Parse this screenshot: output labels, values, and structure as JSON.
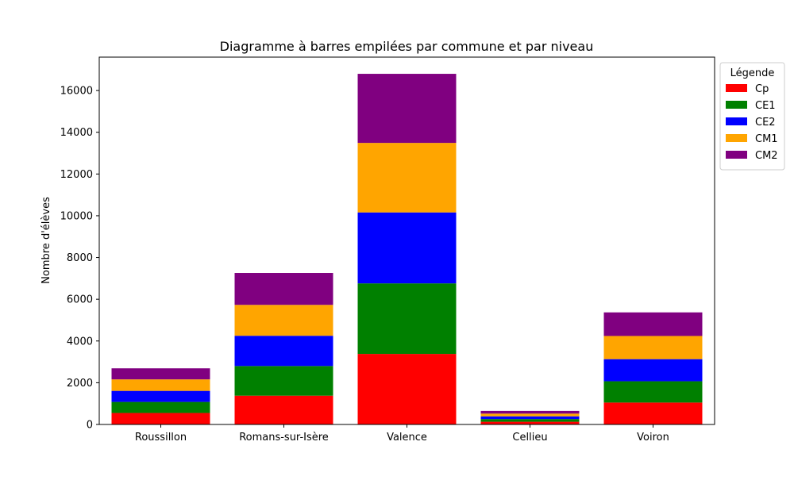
{
  "chart_data": {
    "type": "bar",
    "stacked": true,
    "title": "Diagramme à barres empilées par commune et par niveau",
    "xlabel": "",
    "ylabel": "Nombre d'élèves",
    "ylim": [
      0,
      17600
    ],
    "yticks": [
      0,
      2000,
      4000,
      6000,
      8000,
      10000,
      12000,
      14000,
      16000
    ],
    "grid": false,
    "categories": [
      "Roussillon",
      "Romans-sur-Isère",
      "Valence",
      "Cellieu",
      "Voiron"
    ],
    "legend": {
      "title": "Légende",
      "placement": "outside-right-top"
    },
    "series": [
      {
        "name": "Cp",
        "color": "#ff0000",
        "values": [
          550,
          1380,
          3380,
          130,
          1050
        ]
      },
      {
        "name": "CE1",
        "color": "#008000",
        "values": [
          530,
          1420,
          3380,
          130,
          1020
        ]
      },
      {
        "name": "CE2",
        "color": "#0000ff",
        "values": [
          530,
          1450,
          3400,
          130,
          1060
        ]
      },
      {
        "name": "CM1",
        "color": "#ffa500",
        "values": [
          550,
          1480,
          3330,
          130,
          1110
        ]
      },
      {
        "name": "CM2",
        "color": "#800080",
        "values": [
          530,
          1530,
          3310,
          130,
          1130
        ]
      }
    ]
  }
}
